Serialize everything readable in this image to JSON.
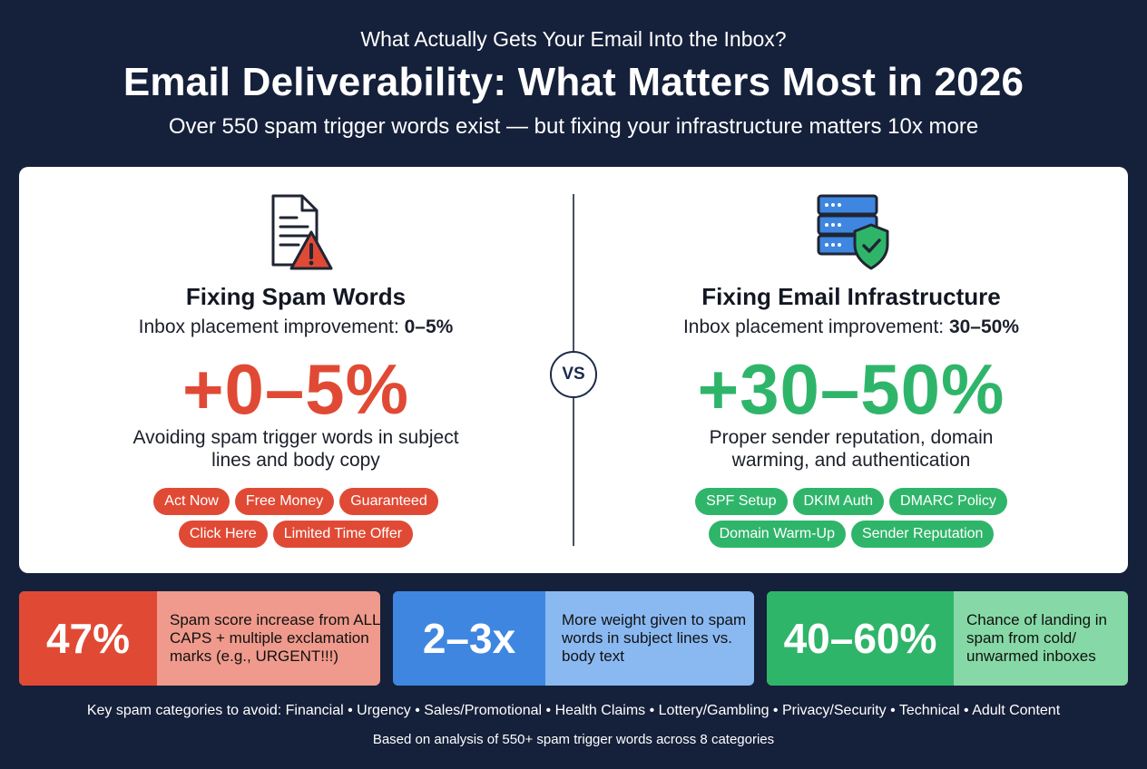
{
  "header": {
    "eyebrow": "What Actually Gets Your Email Into the Inbox?",
    "title": "Email Deliverability: What Matters Most in 2026",
    "subtitle": "Over 550 spam trigger words exist — but fixing your infrastructure matters 10x more"
  },
  "vs_label": "VS",
  "left": {
    "icon": "document-warning-icon",
    "title": "Fixing Spam Words",
    "improvement_label": "Inbox placement improvement: ",
    "improvement_value": "0–5%",
    "big_value": "+0–5%",
    "description": "Avoiding spam trigger words in subject lines and body copy",
    "tags_row1": [
      "Act Now",
      "Free Money",
      "Guaranteed"
    ],
    "tags_row2": [
      "Click Here",
      "Limited Time Offer"
    ],
    "color": "#e04a35"
  },
  "right": {
    "icon": "server-shield-icon",
    "title": "Fixing Email Infrastructure",
    "improvement_label": "Inbox placement improvement: ",
    "improvement_value": "30–50%",
    "big_value": "+30–50%",
    "description": "Proper sender reputation, domain warming, and authentication",
    "tags_row1": [
      "SPF Setup",
      "DKIM Auth",
      "DMARC Policy"
    ],
    "tags_row2": [
      "Domain Warm-Up",
      "Sender Reputation"
    ],
    "color": "#2fb56a"
  },
  "stats": [
    {
      "value": "47%",
      "text": "Spam score increase from ALL CAPS + multiple exclamation marks (e.g., URGENT!!!)",
      "color": "#e04a35"
    },
    {
      "value": "2–3x",
      "text": "More weight given to spam words in subject lines vs. body text",
      "color": "#3f86e0"
    },
    {
      "value": "40–60%",
      "text": "Chance of landing in spam from cold/ unwarmed inboxes",
      "color": "#2fb56a"
    }
  ],
  "footer": {
    "categories": "Key spam categories to avoid: Financial • Urgency • Sales/Promotional • Health Claims • Lottery/Gambling • Privacy/Security • Technical • Adult Content",
    "source": "Based on analysis of 550+ spam trigger words across 8 categories"
  }
}
